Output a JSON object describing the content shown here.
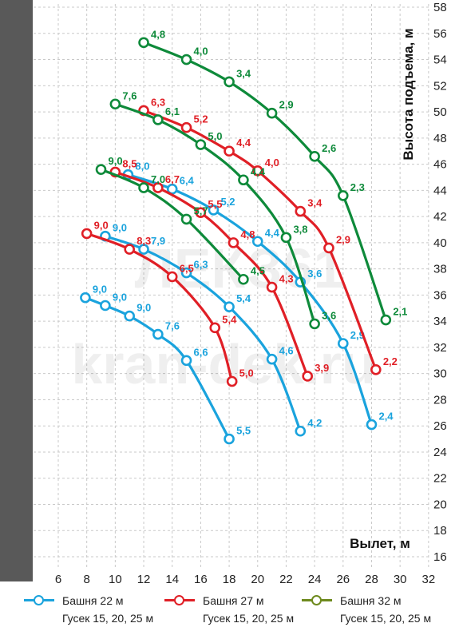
{
  "chart_data": {
    "type": "line",
    "xlabel": "Вылет, м",
    "ylabel": "Высота подъема, м",
    "xlim": [
      6,
      32
    ],
    "ylim": [
      15,
      58
    ],
    "x_ticks": [
      "6",
      "8",
      "10",
      "12",
      "14",
      "16",
      "18",
      "20",
      "22",
      "24",
      "26",
      "28",
      "30",
      "32"
    ],
    "y_ticks": [
      "16",
      "18",
      "20",
      "22",
      "24",
      "26",
      "28",
      "30",
      "32",
      "34",
      "36",
      "38",
      "40",
      "42",
      "44",
      "46",
      "48",
      "50",
      "52",
      "54",
      "56",
      "58"
    ],
    "watermark": [
      "ЛЕКЗ61",
      "kran-dek.ru"
    ],
    "legend": [
      {
        "line1": "Башня 22 м",
        "line2": "Гусек 15, 20, 25 м",
        "color": "#1aa3dd"
      },
      {
        "line1": "Башня 27 м",
        "line2": "Гусек 15, 20, 25 м",
        "color": "#e01f26"
      },
      {
        "line1": "Башня 32 м",
        "line2": "Гусек 15, 20, 25 м",
        "color": "#6e8a1e"
      }
    ],
    "series": [
      {
        "color": "#1aa3dd",
        "points": [
          {
            "x": 10.9,
            "y": 45.2,
            "label": "8,0"
          },
          {
            "x": 14.0,
            "y": 44.1,
            "label": "6,4"
          },
          {
            "x": 16.9,
            "y": 42.5,
            "label": "5,2"
          },
          {
            "x": 20.0,
            "y": 40.1,
            "label": "4,4"
          },
          {
            "x": 23.0,
            "y": 37.0,
            "label": "3,6"
          },
          {
            "x": 26.0,
            "y": 32.3,
            "label": "2,9"
          },
          {
            "x": 28.0,
            "y": 26.1,
            "label": "2,4"
          }
        ]
      },
      {
        "color": "#1aa3dd",
        "points": [
          {
            "x": 9.3,
            "y": 40.5,
            "label": "9,0"
          },
          {
            "x": 12.0,
            "y": 39.5,
            "label": "7,9"
          },
          {
            "x": 15.0,
            "y": 37.7,
            "label": "6,3"
          },
          {
            "x": 18.0,
            "y": 35.1,
            "label": "5,4"
          },
          {
            "x": 21.0,
            "y": 31.1,
            "label": "4,6"
          },
          {
            "x": 23.0,
            "y": 25.6,
            "label": "4,2"
          }
        ]
      },
      {
        "color": "#1aa3dd",
        "points": [
          {
            "x": 7.9,
            "y": 35.8,
            "label": "9,0"
          },
          {
            "x": 9.3,
            "y": 35.2,
            "label": "9,0"
          },
          {
            "x": 11.0,
            "y": 34.4,
            "label": "9,0"
          },
          {
            "x": 13.0,
            "y": 33.0,
            "label": "7,6"
          },
          {
            "x": 15.0,
            "y": 31.0,
            "label": "6,6"
          },
          {
            "x": 18.0,
            "y": 25.0,
            "label": "5,5"
          }
        ]
      },
      {
        "color": "#e01f26",
        "points": [
          {
            "x": 12.0,
            "y": 50.1,
            "label": "6,3"
          },
          {
            "x": 15.0,
            "y": 48.8,
            "label": "5,2"
          },
          {
            "x": 18.0,
            "y": 47.0,
            "label": "4,4"
          },
          {
            "x": 20.0,
            "y": 45.5,
            "label": "4,0"
          },
          {
            "x": 23.0,
            "y": 42.4,
            "label": "3,4"
          },
          {
            "x": 25.0,
            "y": 39.6,
            "label": "2,9"
          },
          {
            "x": 28.3,
            "y": 30.3,
            "label": "2,2"
          }
        ]
      },
      {
        "color": "#e01f26",
        "points": [
          {
            "x": 10.0,
            "y": 45.4,
            "label": "8,5"
          },
          {
            "x": 13.0,
            "y": 44.2,
            "label": "6,7"
          },
          {
            "x": 16.0,
            "y": 42.3,
            "label": "5,5"
          },
          {
            "x": 18.3,
            "y": 40.0,
            "label": "4,8"
          },
          {
            "x": 21.0,
            "y": 36.6,
            "label": "4,3"
          },
          {
            "x": 23.5,
            "y": 29.8,
            "label": "3,9"
          }
        ]
      },
      {
        "color": "#e01f26",
        "points": [
          {
            "x": 8.0,
            "y": 40.7,
            "label": "9,0"
          },
          {
            "x": 11.0,
            "y": 39.5,
            "label": "8,3"
          },
          {
            "x": 14.0,
            "y": 37.4,
            "label": "6,5"
          },
          {
            "x": 17.0,
            "y": 33.5,
            "label": "5,4"
          },
          {
            "x": 18.2,
            "y": 29.4,
            "label": "5,0"
          }
        ]
      },
      {
        "color": "#0e8a3a",
        "points": [
          {
            "x": 12.0,
            "y": 55.3,
            "label": "4,8"
          },
          {
            "x": 15.0,
            "y": 54.0,
            "label": "4,0"
          },
          {
            "x": 18.0,
            "y": 52.3,
            "label": "3,4"
          },
          {
            "x": 21.0,
            "y": 49.9,
            "label": "2,9"
          },
          {
            "x": 24.0,
            "y": 46.6,
            "label": "2,6"
          },
          {
            "x": 26.0,
            "y": 43.6,
            "label": "2,3"
          },
          {
            "x": 29.0,
            "y": 34.1,
            "label": "2,1"
          }
        ]
      },
      {
        "color": "#0e8a3a",
        "points": [
          {
            "x": 10.0,
            "y": 50.6,
            "label": "7,6"
          },
          {
            "x": 13.0,
            "y": 49.4,
            "label": "6,1"
          },
          {
            "x": 16.0,
            "y": 47.5,
            "label": "5,0"
          },
          {
            "x": 19.0,
            "y": 44.8,
            "label": "4,4"
          },
          {
            "x": 22.0,
            "y": 40.4,
            "label": "3,8"
          },
          {
            "x": 24.0,
            "y": 33.8,
            "label": "3,6"
          }
        ]
      },
      {
        "color": "#0e8a3a",
        "points": [
          {
            "x": 9.0,
            "y": 45.6,
            "label": "9,0"
          },
          {
            "x": 12.0,
            "y": 44.2,
            "label": "7,0"
          },
          {
            "x": 15.0,
            "y": 41.8,
            "label": "5,7"
          },
          {
            "x": 19.0,
            "y": 37.2,
            "label": "4,5"
          }
        ]
      }
    ]
  }
}
